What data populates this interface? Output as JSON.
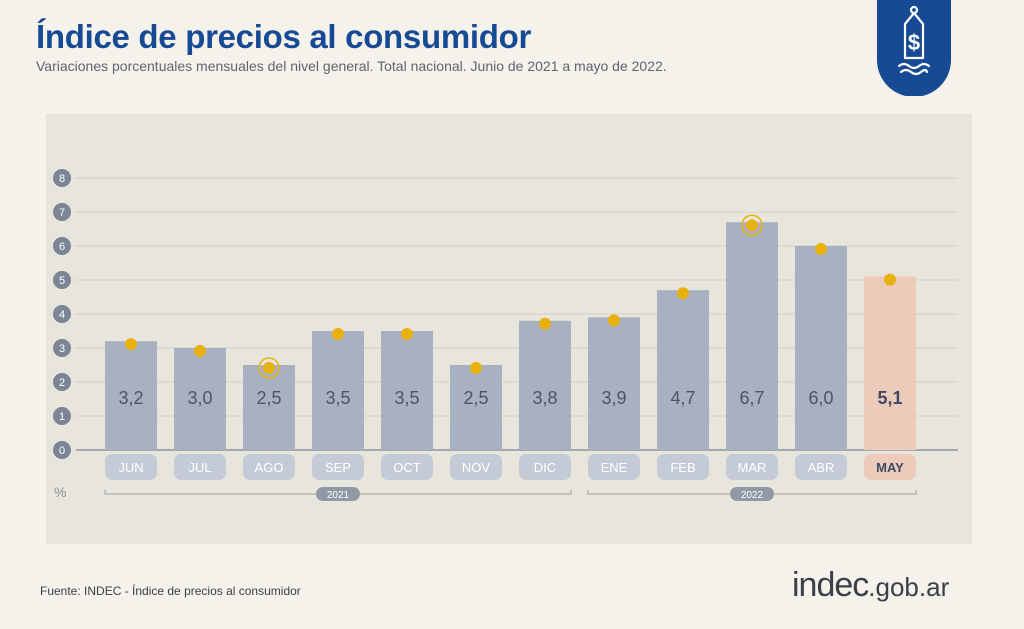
{
  "header": {
    "title": "Índice de precios al consumidor",
    "subtitle": "Variaciones porcentuales mensuales del nivel general. Total nacional. Junio de 2021 a mayo de 2022."
  },
  "footer": {
    "source": "Fuente: INDEC - Índice de precios al consumidor",
    "logo_main": "indec",
    "logo_domain": ".gob.ar"
  },
  "badge": {
    "icon": "price-tag-dollar-icon",
    "color": "#174a94"
  },
  "chart_data": {
    "type": "bar",
    "categories": [
      "JUN",
      "JUL",
      "AGO",
      "SEP",
      "OCT",
      "NOV",
      "DIC",
      "ENE",
      "FEB",
      "MAR",
      "ABR",
      "MAY"
    ],
    "values": [
      3.2,
      3.0,
      2.5,
      3.5,
      3.5,
      2.5,
      3.8,
      3.9,
      4.7,
      6.7,
      6.0,
      5.1
    ],
    "value_labels": [
      "3,2",
      "3,0",
      "2,5",
      "3,5",
      "3,5",
      "2,5",
      "3,8",
      "3,9",
      "4,7",
      "6,7",
      "6,0",
      "5,1"
    ],
    "highlighted_category": "MAY",
    "ringed_points": [
      "AGO",
      "MAR"
    ],
    "y_ticks": [
      "0",
      "1",
      "2",
      "3",
      "4",
      "5",
      "6",
      "7",
      "8"
    ],
    "ylim": [
      0,
      8
    ],
    "ylabel": "%",
    "year_groups": [
      {
        "label": "2021",
        "from": "JUN",
        "to": "DIC"
      },
      {
        "label": "2022",
        "from": "ENE",
        "to": "MAY"
      }
    ],
    "grid": true,
    "colors": {
      "bar": "#a7b1c2",
      "bar_highlight": "#edcbbb",
      "point": "#e8b10f",
      "tick_circle": "#7c8595",
      "month_pill": "#c4cbd6",
      "month_pill_highlight": "#edcbbb"
    }
  }
}
